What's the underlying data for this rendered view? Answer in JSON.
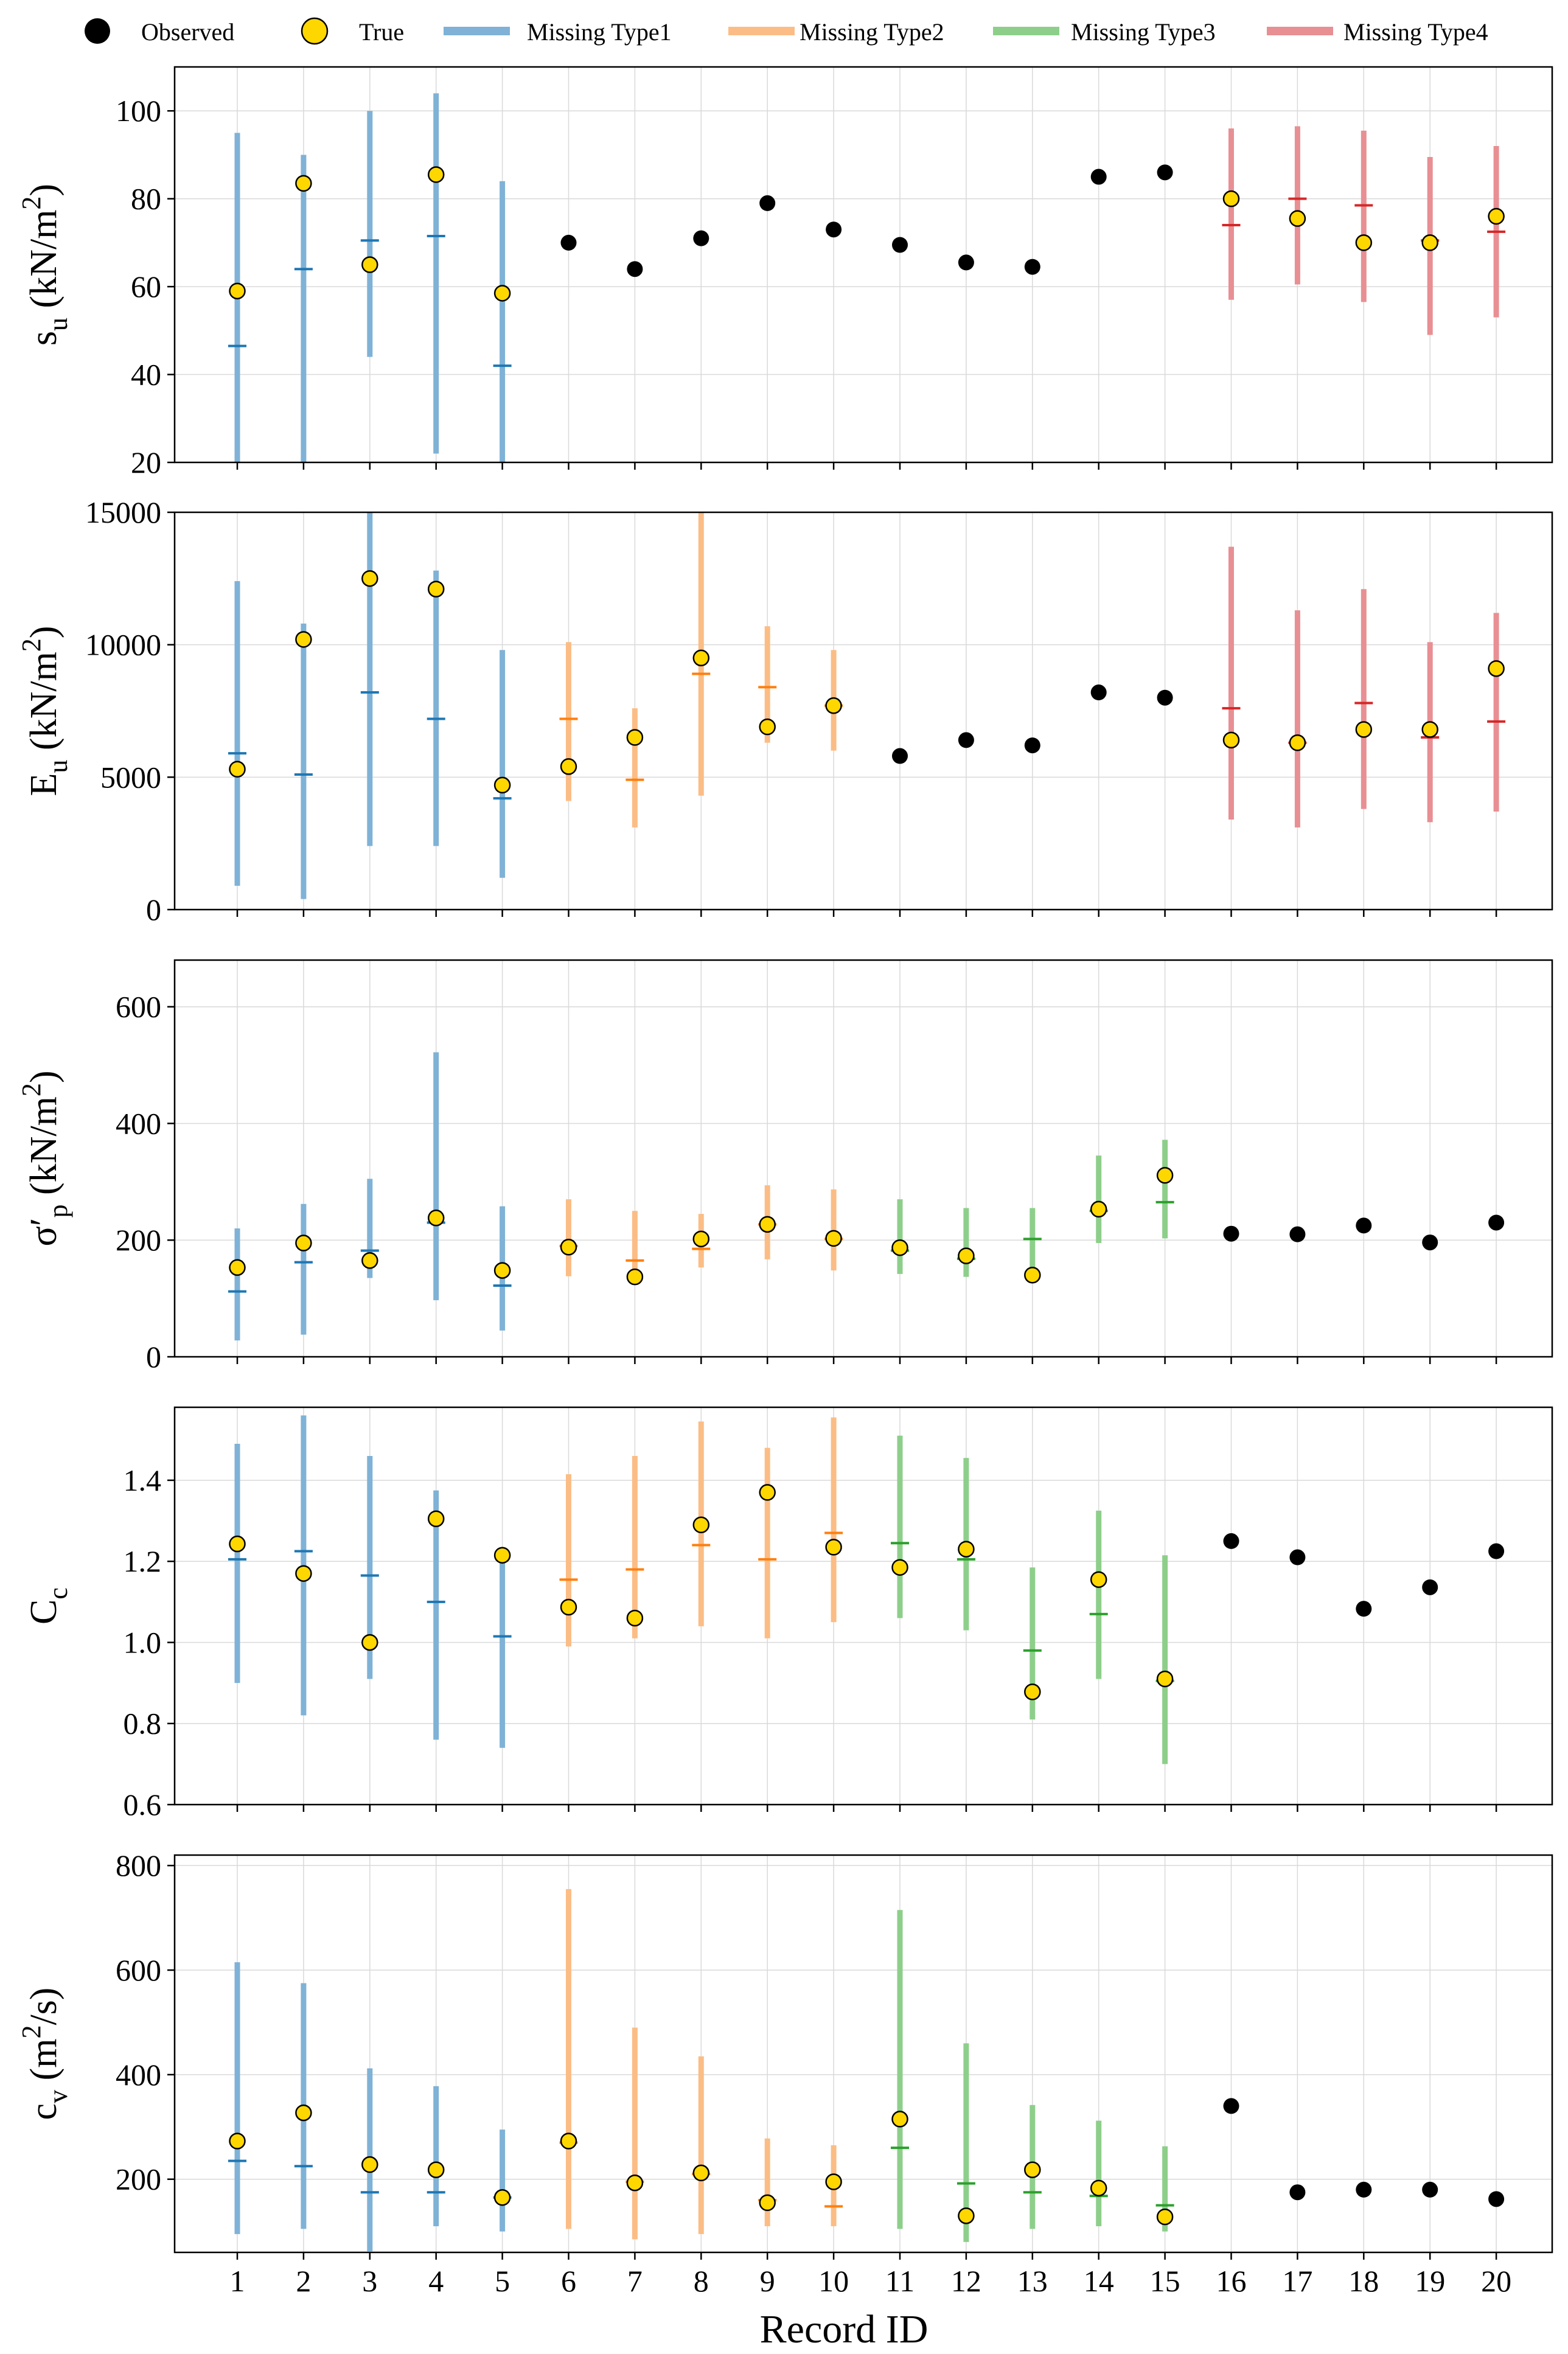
{
  "legend": {
    "observed": "Observed",
    "true": "True",
    "type1": "Missing Type1",
    "type2": "Missing Type2",
    "type3": "Missing Type3",
    "type4": "Missing Type4"
  },
  "colors": {
    "type1": "#7fb2d6",
    "type2": "#fbbd85",
    "type3": "#8dcf8a",
    "type4": "#e88f93",
    "mean1": "#1f77b4",
    "mean2": "#ff7f0e",
    "mean3": "#2ca02c",
    "mean4": "#d62728",
    "true_fill": "#ffd700",
    "observed": "#000000",
    "grid": "#d9d9d9"
  },
  "xaxis": {
    "label": "Record ID",
    "ticks": [
      "1",
      "2",
      "3",
      "4",
      "5",
      "6",
      "7",
      "8",
      "9",
      "10",
      "11",
      "12",
      "13",
      "14",
      "15",
      "16",
      "17",
      "18",
      "19",
      "20"
    ]
  },
  "chart_data": [
    {
      "type": "errorbar-scatter",
      "ylabel_main": "s",
      "ylabel_sub": "u",
      "ylabel_unit_pre": " (kN/m",
      "ylabel_unit_sup": "2",
      "ylabel_unit_post": ")",
      "ylim": [
        20,
        110
      ],
      "yticks": [
        20,
        40,
        60,
        80,
        100
      ],
      "ytick_labels": [
        "20",
        "40",
        "60",
        "80",
        "100"
      ],
      "points": [
        {
          "id": 1,
          "status": "type1",
          "low": 20,
          "high": 95,
          "mean": 46.5,
          "true": 59
        },
        {
          "id": 2,
          "status": "type1",
          "low": 20,
          "high": 90,
          "mean": 64,
          "true": 83.5
        },
        {
          "id": 3,
          "status": "type1",
          "low": 44,
          "high": 100,
          "mean": 70.5,
          "true": 65
        },
        {
          "id": 4,
          "status": "type1",
          "low": 22,
          "high": 104,
          "mean": 71.5,
          "true": 85.5
        },
        {
          "id": 5,
          "status": "type1",
          "low": 20,
          "high": 84,
          "mean": 42,
          "true": 58.5
        },
        {
          "id": 6,
          "status": "observed",
          "value": 70
        },
        {
          "id": 7,
          "status": "observed",
          "value": 64
        },
        {
          "id": 8,
          "status": "observed",
          "value": 71
        },
        {
          "id": 9,
          "status": "observed",
          "value": 79
        },
        {
          "id": 10,
          "status": "observed",
          "value": 73
        },
        {
          "id": 11,
          "status": "observed",
          "value": 69.5
        },
        {
          "id": 12,
          "status": "observed",
          "value": 65.5
        },
        {
          "id": 13,
          "status": "observed",
          "value": 64.5
        },
        {
          "id": 14,
          "status": "observed",
          "value": 85
        },
        {
          "id": 15,
          "status": "observed",
          "value": 86
        },
        {
          "id": 16,
          "status": "type4",
          "low": 57,
          "high": 96,
          "mean": 74,
          "true": 80
        },
        {
          "id": 17,
          "status": "type4",
          "low": 60.5,
          "high": 96.5,
          "mean": 80,
          "true": 75.5
        },
        {
          "id": 18,
          "status": "type4",
          "low": 56.5,
          "high": 95.5,
          "mean": 78.5,
          "true": 70
        },
        {
          "id": 19,
          "status": "type4",
          "low": 49,
          "high": 89.5,
          "mean": 70.5,
          "true": 70
        },
        {
          "id": 20,
          "status": "type4",
          "low": 53,
          "high": 92,
          "mean": 72.5,
          "true": 76
        }
      ]
    },
    {
      "type": "errorbar-scatter",
      "ylabel_main": "E",
      "ylabel_sub": "u",
      "ylabel_unit_pre": " (kN/m",
      "ylabel_unit_sup": "2",
      "ylabel_unit_post": ")",
      "ylim": [
        0,
        15000
      ],
      "yticks": [
        0,
        5000,
        10000,
        15000
      ],
      "ytick_labels": [
        "0",
        "5000",
        "10000",
        "15000"
      ],
      "points": [
        {
          "id": 1,
          "status": "type1",
          "low": 900,
          "high": 12400,
          "mean": 5900,
          "true": 5300
        },
        {
          "id": 2,
          "status": "type1",
          "low": 400,
          "high": 10800,
          "mean": 5100,
          "true": 10200
        },
        {
          "id": 3,
          "status": "type1",
          "low": 2400,
          "high": 15000,
          "mean": 8200,
          "true": 12500
        },
        {
          "id": 4,
          "status": "type1",
          "low": 2400,
          "high": 12800,
          "mean": 7200,
          "true": 12100
        },
        {
          "id": 5,
          "status": "type1",
          "low": 1200,
          "high": 9800,
          "mean": 4200,
          "true": 4700
        },
        {
          "id": 6,
          "status": "type2",
          "low": 4100,
          "high": 10100,
          "mean": 7200,
          "true": 5400
        },
        {
          "id": 7,
          "status": "type2",
          "low": 3100,
          "high": 7600,
          "mean": 4900,
          "true": 6500
        },
        {
          "id": 8,
          "status": "type2",
          "low": 4300,
          "high": 15000,
          "mean": 8900,
          "true": 9500
        },
        {
          "id": 9,
          "status": "type2",
          "low": 6300,
          "high": 10700,
          "mean": 8400,
          "true": 6900
        },
        {
          "id": 10,
          "status": "type2",
          "low": 6000,
          "high": 9800,
          "mean": 7700,
          "true": 7700
        },
        {
          "id": 11,
          "status": "observed",
          "value": 5800
        },
        {
          "id": 12,
          "status": "observed",
          "value": 6400
        },
        {
          "id": 13,
          "status": "observed",
          "value": 6200
        },
        {
          "id": 14,
          "status": "observed",
          "value": 8200
        },
        {
          "id": 15,
          "status": "observed",
          "value": 8000
        },
        {
          "id": 16,
          "status": "type4",
          "low": 3400,
          "high": 13700,
          "mean": 7600,
          "true": 6400
        },
        {
          "id": 17,
          "status": "type4",
          "low": 3100,
          "high": 11300,
          "mean": 6300,
          "true": 6300
        },
        {
          "id": 18,
          "status": "type4",
          "low": 3800,
          "high": 12100,
          "mean": 7800,
          "true": 6800
        },
        {
          "id": 19,
          "status": "type4",
          "low": 3300,
          "high": 10100,
          "mean": 6500,
          "true": 6800
        },
        {
          "id": 20,
          "status": "type4",
          "low": 3700,
          "high": 11200,
          "mean": 7100,
          "true": 9100
        }
      ]
    },
    {
      "type": "errorbar-scatter",
      "ylabel_main": "σ′",
      "ylabel_sub": "p",
      "ylabel_unit_pre": " (kN/m",
      "ylabel_unit_sup": "2",
      "ylabel_unit_post": ")",
      "ylim": [
        0,
        680
      ],
      "yticks": [
        0,
        200,
        400,
        600
      ],
      "ytick_labels": [
        "0",
        "200",
        "400",
        "600"
      ],
      "points": [
        {
          "id": 1,
          "status": "type1",
          "low": 28,
          "high": 220,
          "mean": 112,
          "true": 153
        },
        {
          "id": 2,
          "status": "type1",
          "low": 38,
          "high": 262,
          "mean": 162,
          "true": 195
        },
        {
          "id": 3,
          "status": "type1",
          "low": 135,
          "high": 305,
          "mean": 182,
          "true": 165
        },
        {
          "id": 4,
          "status": "type1",
          "low": 97,
          "high": 522,
          "mean": 230,
          "true": 238
        },
        {
          "id": 5,
          "status": "type1",
          "low": 45,
          "high": 258,
          "mean": 122,
          "true": 148
        },
        {
          "id": 6,
          "status": "type2",
          "low": 138,
          "high": 270,
          "mean": 190,
          "true": 188
        },
        {
          "id": 7,
          "status": "type2",
          "low": 132,
          "high": 250,
          "mean": 165,
          "true": 137
        },
        {
          "id": 8,
          "status": "type2",
          "low": 153,
          "high": 245,
          "mean": 185,
          "true": 202
        },
        {
          "id": 9,
          "status": "type2",
          "low": 167,
          "high": 294,
          "mean": 227,
          "true": 227
        },
        {
          "id": 10,
          "status": "type2",
          "low": 148,
          "high": 287,
          "mean": 202,
          "true": 203
        },
        {
          "id": 11,
          "status": "type3",
          "low": 142,
          "high": 270,
          "mean": 182,
          "true": 187
        },
        {
          "id": 12,
          "status": "type3",
          "low": 137,
          "high": 255,
          "mean": 168,
          "true": 173
        },
        {
          "id": 13,
          "status": "type3",
          "low": 137,
          "high": 255,
          "mean": 202,
          "true": 140
        },
        {
          "id": 14,
          "status": "type3",
          "low": 195,
          "high": 345,
          "mean": 250,
          "true": 253
        },
        {
          "id": 15,
          "status": "type3",
          "low": 203,
          "high": 372,
          "mean": 265,
          "true": 311
        },
        {
          "id": 16,
          "status": "observed",
          "value": 211
        },
        {
          "id": 17,
          "status": "observed",
          "value": 210
        },
        {
          "id": 18,
          "status": "observed",
          "value": 225
        },
        {
          "id": 19,
          "status": "observed",
          "value": 196
        },
        {
          "id": 20,
          "status": "observed",
          "value": 230
        }
      ]
    },
    {
      "type": "errorbar-scatter",
      "ylabel_main": "C",
      "ylabel_sub": "c",
      "ylabel_unit_pre": "",
      "ylabel_unit_sup": "",
      "ylabel_unit_post": "",
      "ylim": [
        0.6,
        1.58
      ],
      "yticks": [
        0.6,
        0.8,
        1.0,
        1.2,
        1.4
      ],
      "ytick_labels": [
        "0.6",
        "0.8",
        "1.0",
        "1.2",
        "1.4"
      ],
      "points": [
        {
          "id": 1,
          "status": "type1",
          "low": 0.9,
          "high": 1.49,
          "mean": 1.205,
          "true": 1.243
        },
        {
          "id": 2,
          "status": "type1",
          "low": 0.82,
          "high": 1.56,
          "mean": 1.225,
          "true": 1.17
        },
        {
          "id": 3,
          "status": "type1",
          "low": 0.91,
          "high": 1.46,
          "mean": 1.165,
          "true": 1.0
        },
        {
          "id": 4,
          "status": "type1",
          "low": 0.76,
          "high": 1.375,
          "mean": 1.1,
          "true": 1.305
        },
        {
          "id": 5,
          "status": "type1",
          "low": 0.74,
          "high": 1.215,
          "mean": 1.015,
          "true": 1.215
        },
        {
          "id": 6,
          "status": "type2",
          "low": 0.99,
          "high": 1.415,
          "mean": 1.155,
          "true": 1.087
        },
        {
          "id": 7,
          "status": "type2",
          "low": 1.01,
          "high": 1.46,
          "mean": 1.18,
          "true": 1.06
        },
        {
          "id": 8,
          "status": "type2",
          "low": 1.04,
          "high": 1.545,
          "mean": 1.24,
          "true": 1.29
        },
        {
          "id": 9,
          "status": "type2",
          "low": 1.01,
          "high": 1.48,
          "mean": 1.205,
          "true": 1.37
        },
        {
          "id": 10,
          "status": "type2",
          "low": 1.05,
          "high": 1.555,
          "mean": 1.27,
          "true": 1.235
        },
        {
          "id": 11,
          "status": "type3",
          "low": 1.06,
          "high": 1.51,
          "mean": 1.245,
          "true": 1.185
        },
        {
          "id": 12,
          "status": "type3",
          "low": 1.03,
          "high": 1.455,
          "mean": 1.205,
          "true": 1.23
        },
        {
          "id": 13,
          "status": "type3",
          "low": 0.81,
          "high": 1.185,
          "mean": 0.98,
          "true": 0.878
        },
        {
          "id": 14,
          "status": "type3",
          "low": 0.91,
          "high": 1.325,
          "mean": 1.07,
          "true": 1.155
        },
        {
          "id": 15,
          "status": "type3",
          "low": 0.7,
          "high": 1.215,
          "mean": 0.905,
          "true": 0.91
        },
        {
          "id": 16,
          "status": "observed",
          "value": 1.25
        },
        {
          "id": 17,
          "status": "observed",
          "value": 1.21
        },
        {
          "id": 18,
          "status": "observed",
          "value": 1.083
        },
        {
          "id": 19,
          "status": "observed",
          "value": 1.136
        },
        {
          "id": 20,
          "status": "observed",
          "value": 1.225
        }
      ]
    },
    {
      "type": "errorbar-scatter",
      "ylabel_main": "c",
      "ylabel_sub": "v",
      "ylabel_unit_pre": " (m",
      "ylabel_unit_sup": "2",
      "ylabel_unit_post": "/s)",
      "ylim": [
        60,
        820
      ],
      "yticks": [
        200,
        400,
        600,
        800
      ],
      "ytick_labels": [
        "200",
        "400",
        "600",
        "800"
      ],
      "points": [
        {
          "id": 1,
          "status": "type1",
          "low": 95,
          "high": 615,
          "mean": 235,
          "true": 273
        },
        {
          "id": 2,
          "status": "type1",
          "low": 105,
          "high": 575,
          "mean": 225,
          "true": 327
        },
        {
          "id": 3,
          "status": "type1",
          "low": 62,
          "high": 412,
          "mean": 175,
          "true": 228
        },
        {
          "id": 4,
          "status": "type1",
          "low": 110,
          "high": 378,
          "mean": 175,
          "true": 218
        },
        {
          "id": 5,
          "status": "type1",
          "low": 100,
          "high": 295,
          "mean": 165,
          "true": 165
        },
        {
          "id": 6,
          "status": "type2",
          "low": 105,
          "high": 755,
          "mean": 270,
          "true": 273
        },
        {
          "id": 7,
          "status": "type2",
          "low": 85,
          "high": 490,
          "mean": 195,
          "true": 193
        },
        {
          "id": 8,
          "status": "type2",
          "low": 95,
          "high": 435,
          "mean": 210,
          "true": 212
        },
        {
          "id": 9,
          "status": "type2",
          "low": 110,
          "high": 278,
          "mean": 160,
          "true": 155
        },
        {
          "id": 10,
          "status": "type2",
          "low": 110,
          "high": 265,
          "mean": 148,
          "true": 195
        },
        {
          "id": 11,
          "status": "type3",
          "low": 105,
          "high": 715,
          "mean": 260,
          "true": 315
        },
        {
          "id": 12,
          "status": "type3",
          "low": 80,
          "high": 460,
          "mean": 192,
          "true": 130
        },
        {
          "id": 13,
          "status": "type3",
          "low": 105,
          "high": 342,
          "mean": 175,
          "true": 218
        },
        {
          "id": 14,
          "status": "type3",
          "low": 110,
          "high": 312,
          "mean": 168,
          "true": 183
        },
        {
          "id": 15,
          "status": "type3",
          "low": 100,
          "high": 263,
          "mean": 150,
          "true": 128
        },
        {
          "id": 16,
          "status": "observed",
          "value": 340
        },
        {
          "id": 17,
          "status": "observed",
          "value": 175
        },
        {
          "id": 18,
          "status": "observed",
          "value": 180
        },
        {
          "id": 19,
          "status": "observed",
          "value": 180
        },
        {
          "id": 20,
          "status": "observed",
          "value": 162
        }
      ]
    }
  ]
}
